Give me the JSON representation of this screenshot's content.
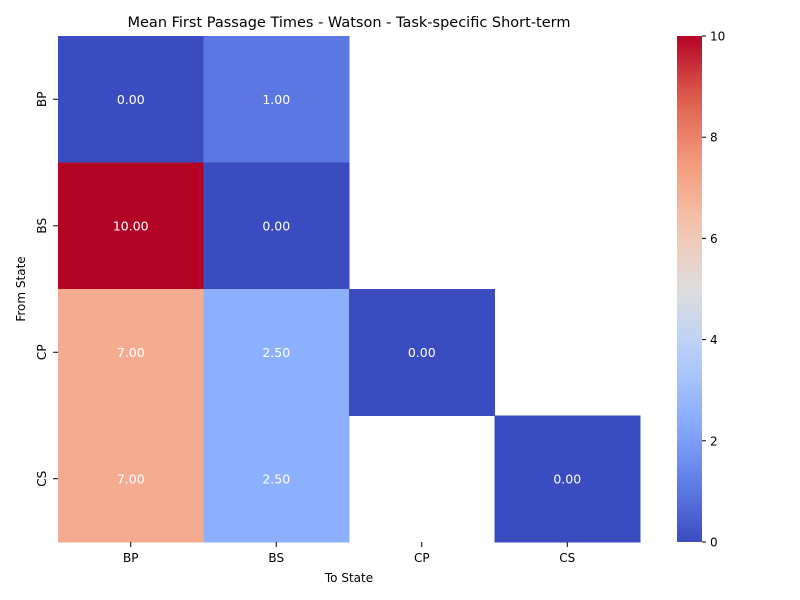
{
  "chart_data": {
    "type": "heatmap",
    "title": "Mean First Passage Times - Watson - Task-specific Short-term",
    "xlabel": "To State",
    "ylabel": "From State",
    "x_categories": [
      "BP",
      "BS",
      "CP",
      "CS"
    ],
    "y_categories": [
      "BP",
      "BS",
      "CP",
      "CS"
    ],
    "values": [
      [
        0.0,
        1.0,
        null,
        null
      ],
      [
        10.0,
        0.0,
        null,
        null
      ],
      [
        7.0,
        2.5,
        0.0,
        null
      ],
      [
        7.0,
        2.5,
        null,
        0.0
      ]
    ],
    "cell_labels": [
      [
        "0.00",
        "1.00",
        null,
        null
      ],
      [
        "10.00",
        "0.00",
        null,
        null
      ],
      [
        "7.00",
        "2.50",
        "0.00",
        null
      ],
      [
        "7.00",
        "2.50",
        null,
        "0.00"
      ]
    ],
    "colormap": "coolwarm",
    "colorbar": {
      "range": [
        0,
        10
      ],
      "ticks": [
        0,
        2,
        4,
        6,
        8,
        10
      ],
      "tick_labels": [
        "0",
        "2",
        "4",
        "6",
        "8",
        "10"
      ]
    },
    "missing_cells_color": "#ffffff",
    "cell_label_color": "#ffffff"
  }
}
